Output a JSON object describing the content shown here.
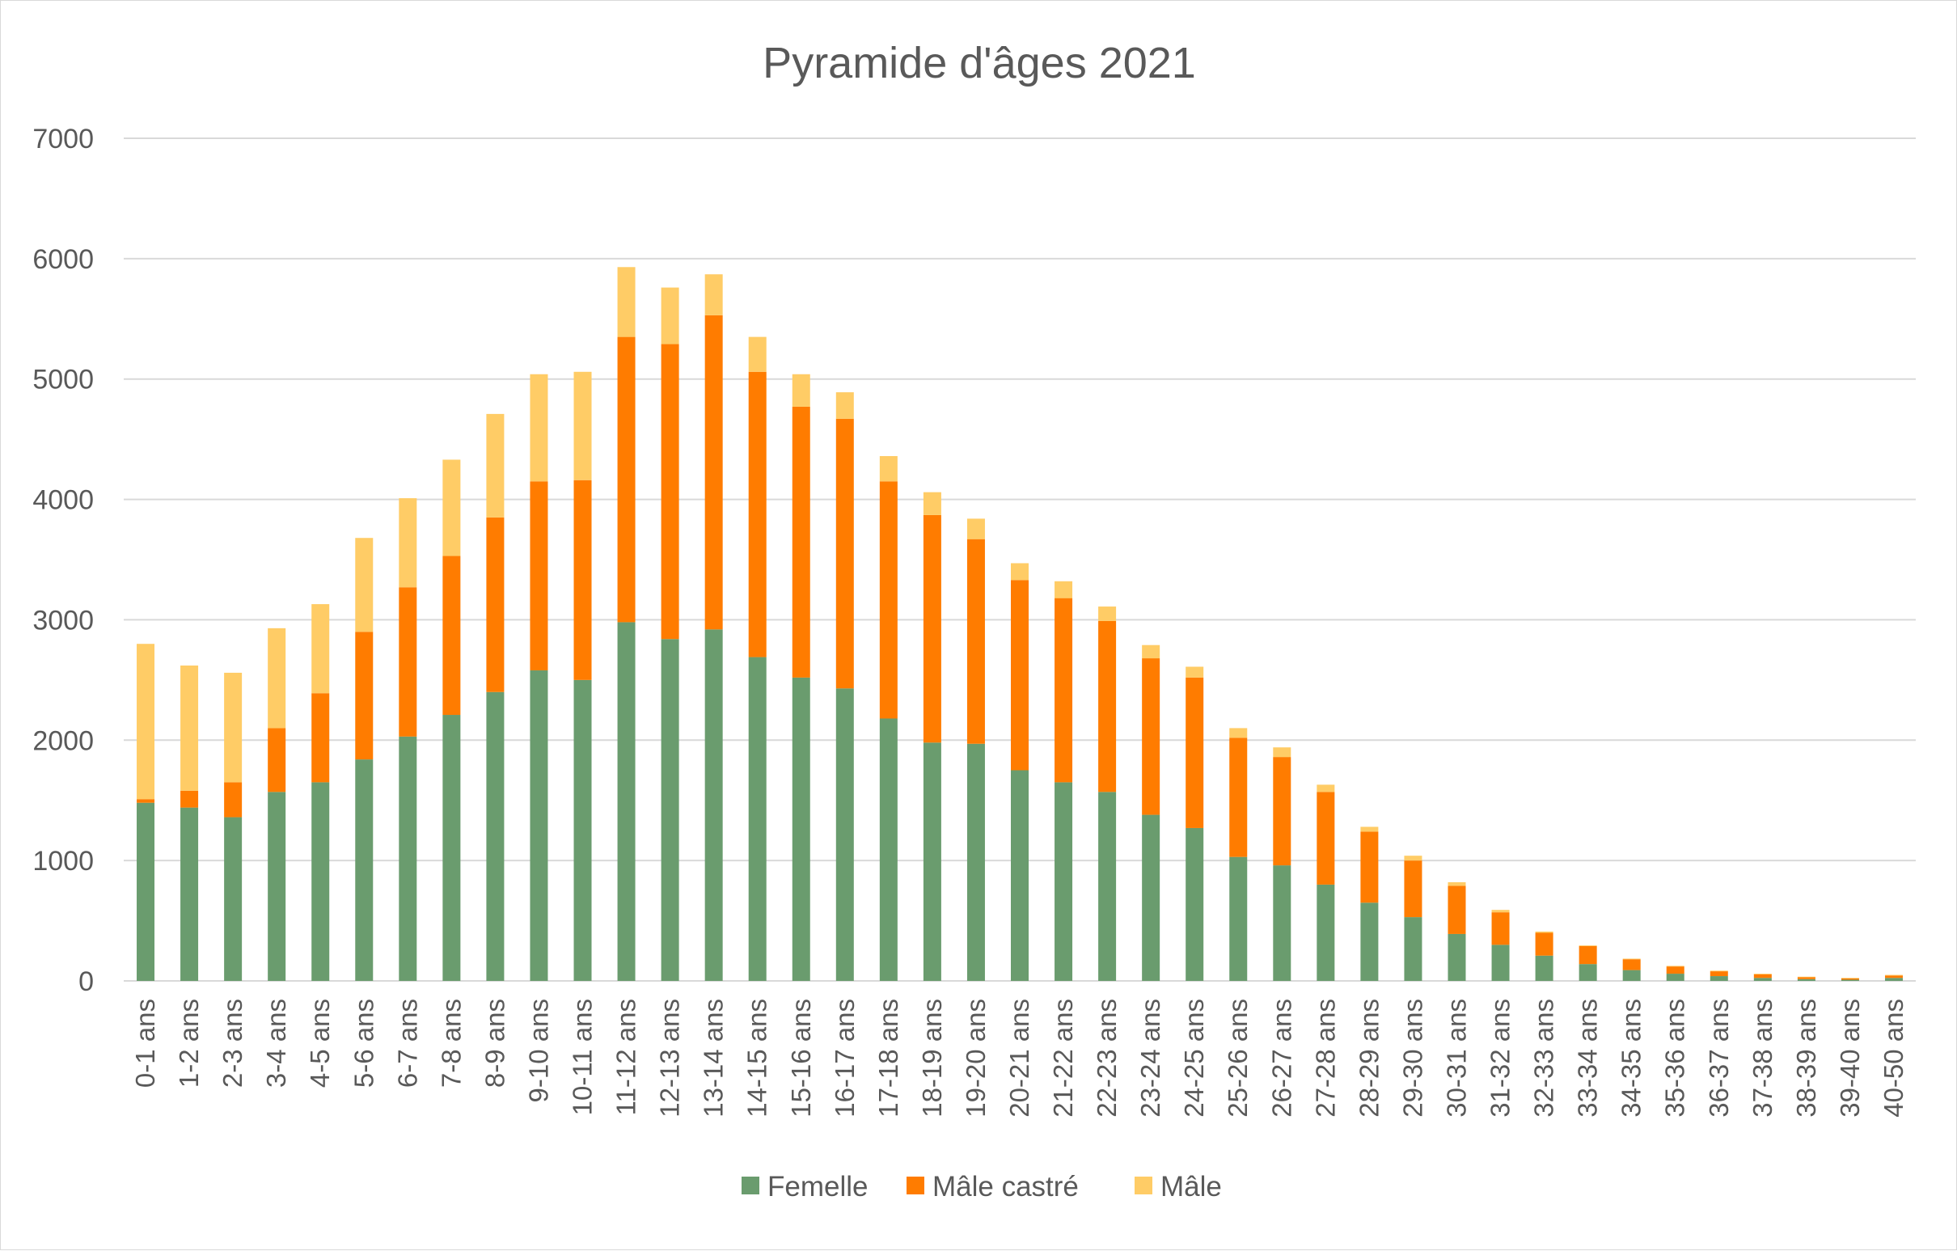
{
  "chart_data": {
    "type": "bar",
    "stacked": true,
    "title": "Pyramide d'âges 2021",
    "xlabel": "",
    "ylabel": "",
    "ylim": [
      0,
      7000
    ],
    "yticks": [
      0,
      1000,
      2000,
      3000,
      4000,
      5000,
      6000,
      7000
    ],
    "grid": true,
    "legend_position": "bottom",
    "categories": [
      "0-1 ans",
      "1-2 ans",
      "2-3 ans",
      "3-4 ans",
      "4-5 ans",
      "5-6 ans",
      "6-7 ans",
      "7-8 ans",
      "8-9 ans",
      "9-10 ans",
      "10-11 ans",
      "11-12 ans",
      "12-13 ans",
      "13-14 ans",
      "14-15 ans",
      "15-16 ans",
      "16-17 ans",
      "17-18 ans",
      "18-19 ans",
      "19-20 ans",
      "20-21 ans",
      "21-22 ans",
      "22-23 ans",
      "23-24 ans",
      "24-25 ans",
      "25-26 ans",
      "26-27 ans",
      "27-28 ans",
      "28-29 ans",
      "29-30 ans",
      "30-31 ans",
      "31-32 ans",
      "32-33 ans",
      "33-34 ans",
      "34-35 ans",
      "35-36 ans",
      "36-37 ans",
      "37-38 ans",
      "38-39 ans",
      "39-40 ans",
      "40-50 ans"
    ],
    "series": [
      {
        "name": "Femelle",
        "color": "#6a9c6e",
        "values": [
          1480,
          1440,
          1360,
          1570,
          1650,
          1840,
          2030,
          2210,
          2400,
          2580,
          2500,
          2980,
          2840,
          2920,
          2690,
          2520,
          2430,
          2180,
          1980,
          1970,
          1750,
          1650,
          1570,
          1380,
          1270,
          1030,
          960,
          800,
          650,
          530,
          390,
          300,
          210,
          140,
          90,
          60,
          40,
          25,
          15,
          10,
          25
        ]
      },
      {
        "name": "Mâle castré",
        "color": "#ff7c00",
        "values": [
          30,
          140,
          290,
          530,
          740,
          1060,
          1240,
          1320,
          1450,
          1570,
          1660,
          2370,
          2450,
          2610,
          2370,
          2250,
          2240,
          1970,
          1890,
          1700,
          1580,
          1530,
          1420,
          1300,
          1250,
          990,
          900,
          770,
          590,
          470,
          400,
          270,
          190,
          150,
          90,
          60,
          40,
          30,
          15,
          10,
          20
        ]
      },
      {
        "name": "Mâle",
        "color": "#ffcc66",
        "values": [
          1290,
          1040,
          910,
          830,
          740,
          780,
          740,
          800,
          860,
          890,
          900,
          580,
          470,
          340,
          290,
          270,
          220,
          210,
          190,
          170,
          140,
          140,
          120,
          110,
          90,
          80,
          80,
          60,
          40,
          40,
          30,
          20,
          10,
          5,
          5,
          5,
          5,
          5,
          5,
          5,
          5
        ]
      }
    ]
  }
}
